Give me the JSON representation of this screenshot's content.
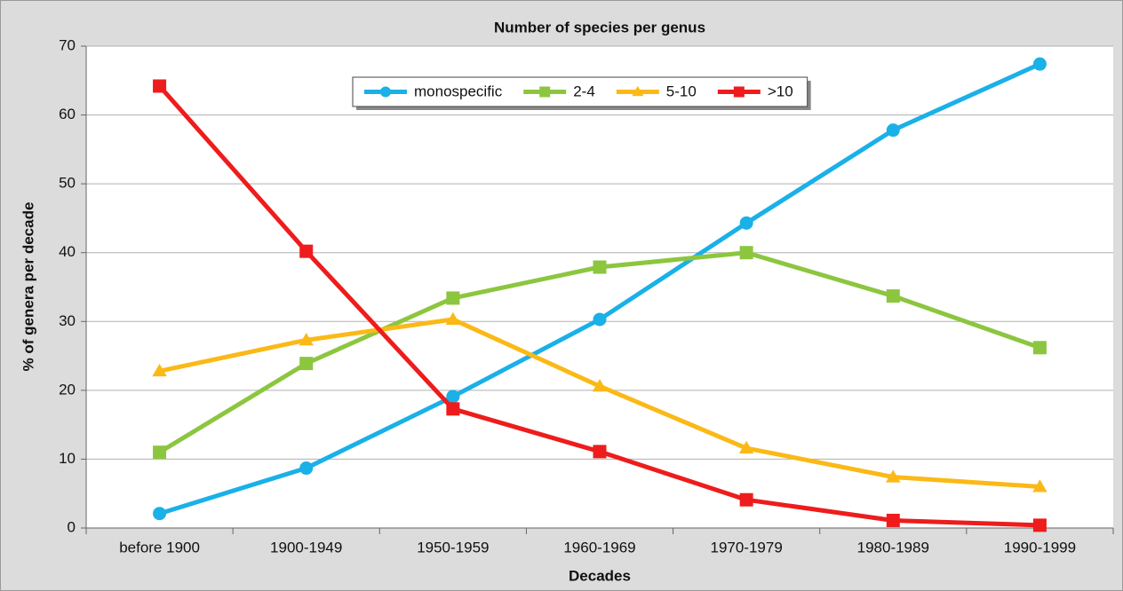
{
  "chart_data": {
    "type": "line",
    "title": "Number of species per genus",
    "x_label": "Decades",
    "y_label": "% of genera per decade",
    "categories": [
      "before 1900",
      "1900-1949",
      "1950-1959",
      "1960-1969",
      "1970-1979",
      "1980-1989",
      "1990-1999"
    ],
    "series": [
      {
        "name": "monospecific",
        "color": "#1ab0e8",
        "marker": "circle",
        "values": [
          2.1,
          8.7,
          19.1,
          30.3,
          44.3,
          57.8,
          67.4
        ]
      },
      {
        "name": "2-4",
        "color": "#8cc63f",
        "marker": "square",
        "values": [
          11.0,
          23.9,
          33.4,
          37.9,
          40.0,
          33.7,
          26.2
        ]
      },
      {
        "name": "5-10",
        "color": "#fbb917",
        "marker": "triangle",
        "values": [
          22.8,
          27.3,
          30.3,
          20.6,
          11.6,
          7.4,
          6.0
        ]
      },
      {
        "name": ">10",
        "color": "#ee1c1c",
        "marker": "square",
        "values": [
          64.2,
          40.2,
          17.3,
          11.1,
          4.1,
          1.1,
          0.4
        ]
      }
    ],
    "ylim": [
      0,
      70
    ],
    "yticks": [
      0,
      10,
      20,
      30,
      40,
      50,
      60,
      70
    ],
    "grid": true,
    "legend": "top"
  }
}
